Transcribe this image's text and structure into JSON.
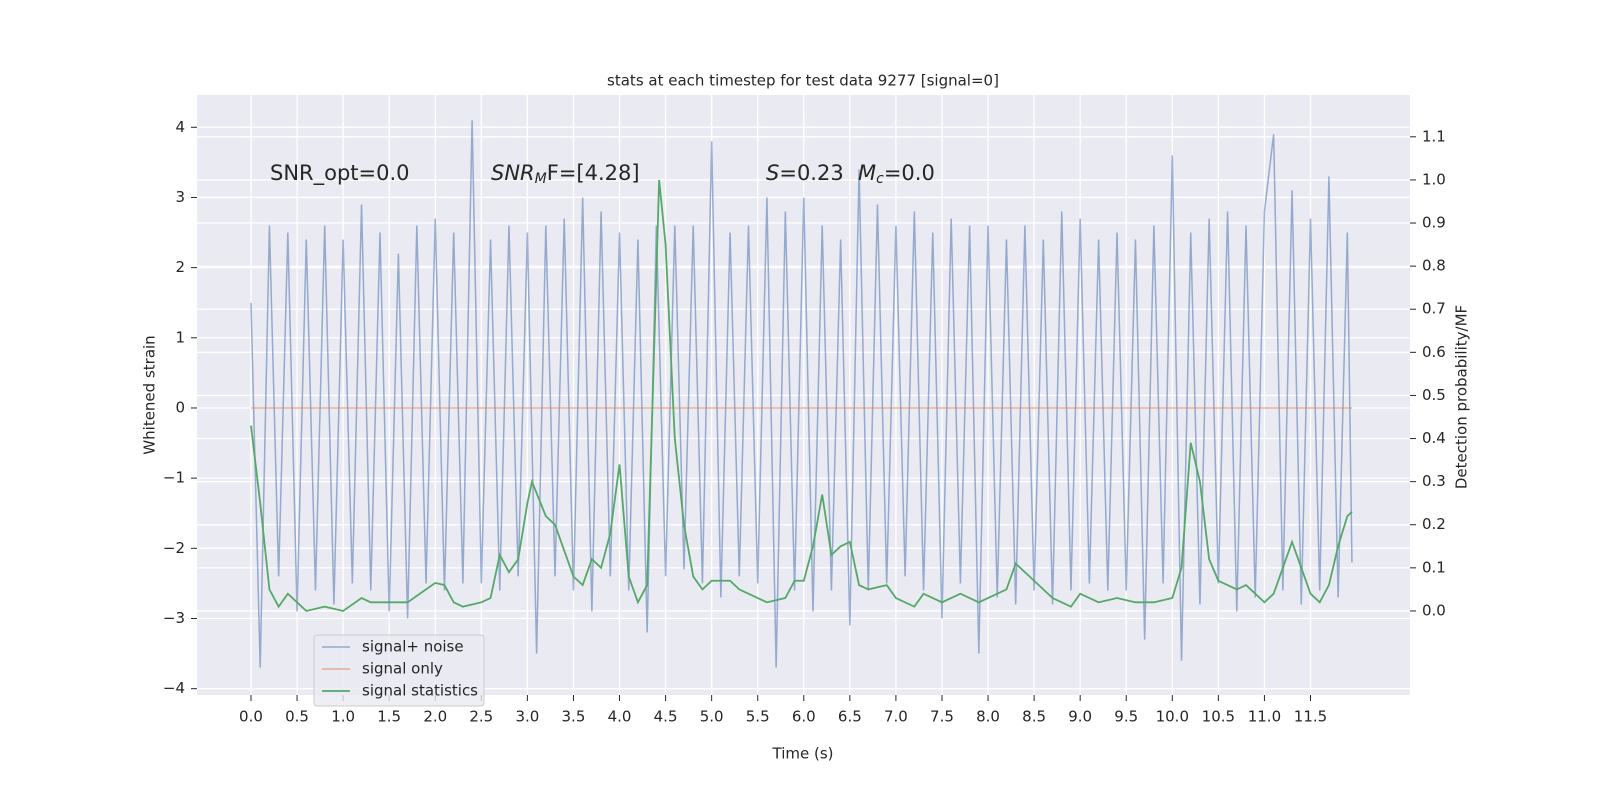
{
  "chart_data": {
    "type": "line",
    "title": "stats at each timestep for test data 9277 [signal=0]",
    "xlabel": "Time (s)",
    "ylabel": "Whitened strain",
    "y2label": "Detection probability/MF",
    "xlim": [
      -0.586,
      12.58
    ],
    "ylim": [
      -4.09,
      4.46
    ],
    "y2lim": [
      -0.195,
      1.197
    ],
    "xticks": [
      {
        "value": 0,
        "label": "0.0"
      },
      0.5,
      {
        "value": 1,
        "label": "1.0"
      },
      1.5,
      {
        "value": 2,
        "label": "2.0"
      },
      2.5,
      {
        "value": 3,
        "label": "3.0"
      },
      3.5,
      {
        "value": 4,
        "label": "4.0"
      },
      4.5,
      {
        "value": 5,
        "label": "5.0"
      },
      5.5,
      {
        "value": 6,
        "label": "6.0"
      },
      6.5,
      {
        "value": 7,
        "label": "7.0"
      },
      7.5,
      {
        "value": 8,
        "label": "8.0"
      },
      8.5,
      {
        "value": 9,
        "label": "9.0"
      },
      9.5,
      {
        "value": 10,
        "label": "10.0"
      },
      10.5,
      {
        "value": 11,
        "label": "11.0"
      },
      11.5
    ],
    "yticks": [
      {
        "value": -4,
        "label": "−4"
      },
      {
        "value": -3,
        "label": "−3"
      },
      {
        "value": -2,
        "label": "−2"
      },
      {
        "value": -1,
        "label": "−1"
      },
      0,
      1,
      2,
      3,
      4
    ],
    "y2ticks": [
      {
        "value": 0,
        "label": "0.0"
      },
      0.1,
      0.2,
      0.3,
      0.4,
      0.5,
      0.6,
      0.7,
      0.8,
      0.9,
      {
        "value": 1,
        "label": "1.0"
      },
      1.1
    ],
    "grid": true,
    "legend": "lower left",
    "annotations": [
      {
        "parts": [
          "SNR_opt=0.0"
        ]
      },
      {
        "parts": [
          "SNR",
          "M",
          "F=[4.28]"
        ]
      },
      {
        "parts": [
          "S",
          "=0.23"
        ]
      },
      {
        "parts": [
          "M",
          "c",
          "=0.0"
        ]
      }
    ],
    "series": [
      {
        "name": "signal+ noise",
        "color": "#4c72b0",
        "x": [
          0.0,
          0.1,
          0.2,
          0.3,
          0.4,
          0.5,
          0.6,
          0.7,
          0.8,
          0.9,
          1.0,
          1.1,
          1.2,
          1.3,
          1.4,
          1.5,
          1.6,
          1.7,
          1.8,
          1.9,
          2.0,
          2.1,
          2.2,
          2.3,
          2.4,
          2.5,
          2.6,
          2.7,
          2.8,
          2.9,
          3.0,
          3.1,
          3.2,
          3.3,
          3.4,
          3.5,
          3.6,
          3.7,
          3.8,
          3.9,
          4.0,
          4.1,
          4.2,
          4.3,
          4.4,
          4.5,
          4.6,
          4.7,
          4.8,
          4.9,
          5.0,
          5.1,
          5.2,
          5.3,
          5.4,
          5.5,
          5.6,
          5.7,
          5.8,
          5.9,
          6.0,
          6.1,
          6.2,
          6.3,
          6.4,
          6.5,
          6.6,
          6.7,
          6.8,
          6.9,
          7.0,
          7.1,
          7.2,
          7.3,
          7.4,
          7.5,
          7.6,
          7.7,
          7.8,
          7.9,
          8.0,
          8.1,
          8.2,
          8.3,
          8.4,
          8.5,
          8.6,
          8.7,
          8.8,
          8.9,
          9.0,
          9.1,
          9.2,
          9.3,
          9.4,
          9.5,
          9.6,
          9.7,
          9.8,
          9.9,
          10.0,
          10.1,
          10.2,
          10.3,
          10.4,
          10.5,
          10.6,
          10.7,
          10.8,
          10.9,
          11.0,
          11.1,
          11.2,
          11.3,
          11.4,
          11.5,
          11.6,
          11.7,
          11.8,
          11.9,
          11.95
        ],
        "values": [
          1.5,
          -3.7,
          2.6,
          -2.4,
          2.5,
          -2.9,
          2.4,
          -2.6,
          2.6,
          -2.8,
          2.4,
          -2.5,
          2.9,
          -2.6,
          2.5,
          -2.9,
          2.2,
          -3.0,
          2.6,
          -2.5,
          2.7,
          -2.6,
          2.5,
          -2.5,
          4.1,
          -2.5,
          2.4,
          -2.6,
          2.6,
          -2.4,
          2.5,
          -3.5,
          2.6,
          -2.4,
          2.7,
          -2.6,
          3.0,
          -2.9,
          2.8,
          -2.4,
          2.5,
          -2.6,
          2.4,
          -3.2,
          2.6,
          -2.4,
          2.6,
          -2.3,
          2.6,
          -2.5,
          3.8,
          -2.7,
          2.5,
          -2.4,
          2.6,
          -2.5,
          3.0,
          -3.7,
          2.8,
          -2.6,
          3.0,
          -2.9,
          2.6,
          -2.6,
          2.4,
          -3.1,
          3.4,
          -2.6,
          2.9,
          -2.5,
          2.6,
          -2.4,
          2.8,
          -2.6,
          2.5,
          -3.0,
          2.7,
          -2.5,
          2.6,
          -3.5,
          2.6,
          -2.7,
          2.4,
          -2.8,
          2.6,
          -2.6,
          2.4,
          -2.8,
          2.8,
          -2.6,
          2.7,
          -2.5,
          2.4,
          -2.6,
          2.5,
          -2.6,
          2.4,
          -3.3,
          2.6,
          -2.5,
          3.6,
          -3.6,
          2.5,
          -2.8,
          2.7,
          -2.5,
          2.8,
          -2.9,
          2.6,
          -2.7,
          2.8,
          3.9,
          -2.6,
          3.1,
          -2.8,
          2.7,
          -2.6,
          3.3,
          -2.7,
          2.5,
          -2.2
        ]
      },
      {
        "name": "signal only",
        "color": "#dd8452",
        "x": [
          0.0,
          11.95
        ],
        "values": [
          0,
          0
        ]
      },
      {
        "name": "signal statistics",
        "color": "#55a868",
        "axis": "y2",
        "x": [
          0,
          0.1,
          0.2,
          0.3,
          0.4,
          0.5,
          0.6,
          0.8,
          1.0,
          1.2,
          1.3,
          1.5,
          1.7,
          1.9,
          2.0,
          2.1,
          2.2,
          2.3,
          2.5,
          2.6,
          2.7,
          2.8,
          2.9,
          3.0,
          3.05,
          3.2,
          3.3,
          3.5,
          3.6,
          3.7,
          3.8,
          3.9,
          4.0,
          4.1,
          4.2,
          4.3,
          4.43,
          4.5,
          4.6,
          4.7,
          4.8,
          4.9,
          5.0,
          5.2,
          5.3,
          5.5,
          5.6,
          5.8,
          5.9,
          6.0,
          6.1,
          6.2,
          6.3,
          6.4,
          6.5,
          6.6,
          6.7,
          6.9,
          7.0,
          7.2,
          7.3,
          7.5,
          7.7,
          7.9,
          8.2,
          8.3,
          8.5,
          8.7,
          8.9,
          9.0,
          9.2,
          9.4,
          9.6,
          9.8,
          10.0,
          10.1,
          10.2,
          10.3,
          10.4,
          10.5,
          10.7,
          10.8,
          11.0,
          11.1,
          11.2,
          11.3,
          11.5,
          11.6,
          11.7,
          11.8,
          11.9,
          11.95
        ],
        "values": [
          0.43,
          0.25,
          0.05,
          0.01,
          0.04,
          0.02,
          0.0,
          0.01,
          0.0,
          0.03,
          0.02,
          0.02,
          0.02,
          0.05,
          0.065,
          0.06,
          0.02,
          0.01,
          0.02,
          0.03,
          0.13,
          0.09,
          0.12,
          0.25,
          0.3,
          0.22,
          0.2,
          0.08,
          0.06,
          0.12,
          0.1,
          0.18,
          0.34,
          0.08,
          0.02,
          0.06,
          1.0,
          0.85,
          0.4,
          0.2,
          0.08,
          0.05,
          0.07,
          0.07,
          0.05,
          0.03,
          0.02,
          0.03,
          0.07,
          0.07,
          0.15,
          0.27,
          0.13,
          0.15,
          0.16,
          0.06,
          0.05,
          0.06,
          0.03,
          0.01,
          0.04,
          0.02,
          0.04,
          0.02,
          0.05,
          0.11,
          0.07,
          0.03,
          0.01,
          0.04,
          0.02,
          0.03,
          0.02,
          0.02,
          0.03,
          0.1,
          0.39,
          0.3,
          0.12,
          0.07,
          0.05,
          0.06,
          0.02,
          0.04,
          0.1,
          0.16,
          0.04,
          0.02,
          0.06,
          0.15,
          0.22,
          0.23
        ]
      }
    ]
  }
}
